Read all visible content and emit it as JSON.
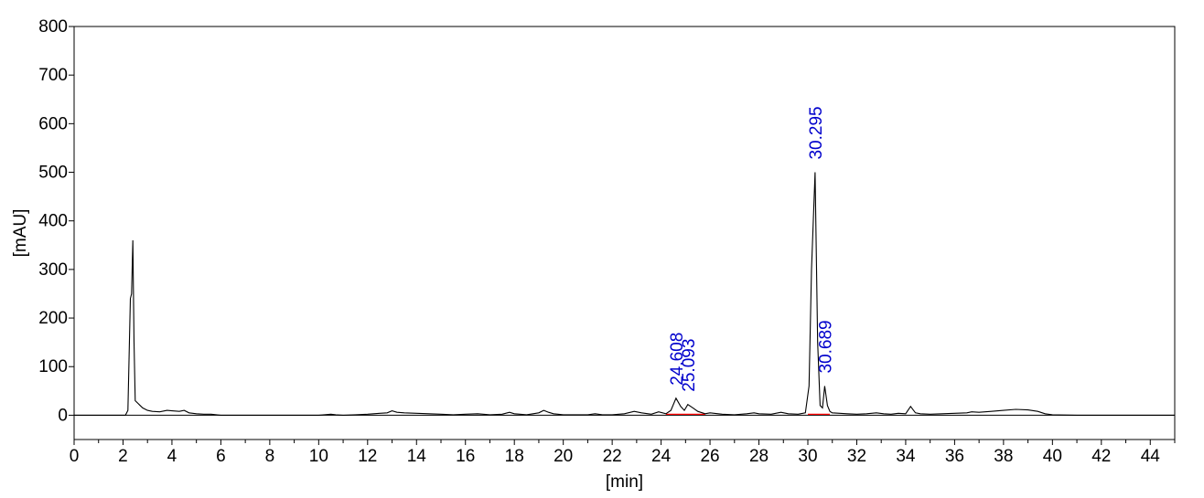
{
  "chart_data": {
    "type": "line",
    "title": "",
    "xlabel": "[min]",
    "ylabel": "[mAU]",
    "xlim": [
      0,
      45
    ],
    "ylim": [
      -50,
      800
    ],
    "x_ticks": [
      "0",
      "2",
      "4",
      "6",
      "8",
      "10",
      "12",
      "14",
      "16",
      "18",
      "20",
      "22",
      "24",
      "26",
      "28",
      "30",
      "32",
      "34",
      "36",
      "38",
      "40",
      "42",
      "44"
    ],
    "y_ticks": [
      "0",
      "100",
      "200",
      "300",
      "400",
      "500",
      "600",
      "700",
      "800"
    ],
    "grid": false,
    "colors": {
      "trace": "#000000",
      "peak_label": "#0000cc",
      "baseline": "#ff0000"
    },
    "series": [
      {
        "x": [
          0.0,
          2.1,
          2.2,
          2.3,
          2.35,
          2.4,
          2.45,
          2.5,
          2.6,
          2.7,
          2.8,
          3.0,
          3.2,
          3.5,
          3.8,
          4.0,
          4.3,
          4.5,
          4.7,
          5.0,
          5.3,
          5.6,
          6.0,
          7.0,
          8.0,
          9.0,
          10.0,
          10.5,
          10.7,
          11.0,
          11.5,
          12.0,
          12.5,
          12.8,
          13.0,
          13.2,
          13.5,
          14.0,
          15.0,
          15.5,
          16.0,
          16.5,
          17.0,
          17.5,
          17.8,
          18.0,
          18.5,
          19.0,
          19.2,
          19.4,
          19.6,
          20.0,
          21.0,
          21.3,
          21.6,
          22.0,
          22.5,
          22.9,
          23.2,
          23.6,
          23.9,
          24.2,
          24.4,
          24.608,
          24.8,
          24.95,
          25.093,
          25.3,
          25.5,
          25.8,
          26.0,
          26.5,
          27.0,
          27.5,
          27.8,
          28.0,
          28.5,
          28.9,
          29.2,
          29.6,
          29.9,
          30.05,
          30.15,
          30.295,
          30.4,
          30.5,
          30.6,
          30.689,
          30.8,
          30.9,
          31.0,
          31.3,
          31.6,
          32.0,
          32.4,
          32.8,
          33.1,
          33.4,
          33.7,
          34.0,
          34.2,
          34.4,
          34.6,
          35.0,
          35.5,
          36.0,
          36.5,
          36.7,
          37.0,
          37.5,
          38.0,
          38.5,
          39.0,
          39.4,
          39.7,
          40.0,
          41.0,
          42.0,
          43.0,
          44.0,
          45.0
        ],
        "y": [
          0,
          0,
          10,
          240,
          250,
          360,
          150,
          30,
          25,
          20,
          15,
          10,
          8,
          7,
          10,
          9,
          8,
          10,
          5,
          3,
          2,
          2,
          0,
          0,
          0,
          0,
          0,
          2,
          1,
          0,
          1,
          2,
          4,
          5,
          9,
          6,
          5,
          4,
          2,
          1,
          2,
          3,
          1,
          2,
          6,
          3,
          1,
          5,
          10,
          6,
          3,
          1,
          1,
          3,
          1,
          1,
          3,
          8,
          5,
          2,
          7,
          3,
          10,
          35,
          18,
          10,
          22,
          15,
          8,
          3,
          5,
          2,
          1,
          3,
          5,
          3,
          2,
          6,
          3,
          2,
          5,
          60,
          300,
          500,
          150,
          20,
          15,
          60,
          20,
          8,
          5,
          4,
          3,
          2,
          3,
          5,
          3,
          2,
          4,
          3,
          18,
          5,
          3,
          2,
          3,
          4,
          5,
          7,
          6,
          8,
          10,
          12,
          11,
          8,
          3,
          1,
          0,
          0,
          0,
          0,
          0
        ]
      }
    ],
    "peaks": [
      {
        "label": "24.608",
        "x": 24.608,
        "y": 35
      },
      {
        "label": "25.093",
        "x": 25.093,
        "y": 22
      },
      {
        "label": "30.295",
        "x": 30.295,
        "y": 500
      },
      {
        "label": "30.689",
        "x": 30.689,
        "y": 60
      }
    ],
    "integration_baselines": [
      [
        24.2,
        25.8
      ],
      [
        30.0,
        30.9
      ]
    ]
  }
}
